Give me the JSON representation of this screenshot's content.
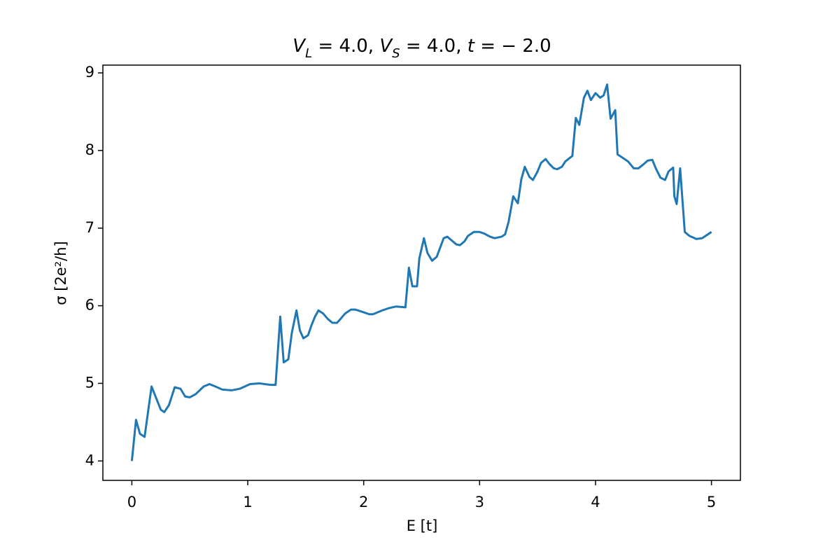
{
  "chart_data": {
    "type": "line",
    "title_parts": [
      {
        "text": "V",
        "italic": true
      },
      {
        "text": "L",
        "italic": true,
        "sub": true
      },
      {
        "text": " = 4.0, "
      },
      {
        "text": "V",
        "italic": true
      },
      {
        "text": "S",
        "italic": true,
        "sub": true
      },
      {
        "text": " = 4.0, "
      },
      {
        "text": "t",
        "italic": true
      },
      {
        "text": " =  − 2.0"
      }
    ],
    "x_label": "E [t]",
    "y_label": "σ [2e²/h]",
    "xlim": [
      -0.25,
      5.25
    ],
    "ylim": [
      3.75,
      9.1
    ],
    "xticks": [
      0,
      1,
      2,
      3,
      4,
      5
    ],
    "yticks": [
      4,
      5,
      6,
      7,
      8,
      9
    ],
    "grid": false,
    "series": [
      {
        "color": "#1f77b4",
        "x": [
          0,
          0.036,
          0.07,
          0.11,
          0.17,
          0.25,
          0.28,
          0.32,
          0.37,
          0.42,
          0.46,
          0.5,
          0.55,
          0.62,
          0.67,
          0.72,
          0.78,
          0.86,
          0.93,
          1.02,
          1.1,
          1.2,
          1.24,
          1.28,
          1.31,
          1.35,
          1.38,
          1.42,
          1.45,
          1.48,
          1.52,
          1.55,
          1.58,
          1.61,
          1.65,
          1.69,
          1.73,
          1.77,
          1.8,
          1.84,
          1.89,
          1.93,
          1.99,
          2.05,
          2.08,
          2.16,
          2.22,
          2.28,
          2.36,
          2.39,
          2.42,
          2.46,
          2.48,
          2.52,
          2.55,
          2.59,
          2.63,
          2.66,
          2.69,
          2.72,
          2.76,
          2.8,
          2.83,
          2.87,
          2.9,
          2.95,
          3.0,
          3.04,
          3.09,
          3.13,
          3.19,
          3.22,
          3.25,
          3.29,
          3.33,
          3.36,
          3.39,
          3.43,
          3.46,
          3.5,
          3.53,
          3.57,
          3.6,
          3.64,
          3.67,
          3.71,
          3.74,
          3.8,
          3.83,
          3.86,
          3.9,
          3.93,
          3.96,
          4.0,
          4.04,
          4.07,
          4.1,
          4.13,
          4.17,
          4.19,
          4.23,
          4.28,
          4.33,
          4.37,
          4.42,
          4.45,
          4.49,
          4.52,
          4.56,
          4.6,
          4.63,
          4.67,
          4.68,
          4.7,
          4.73,
          4.77,
          4.81,
          4.87,
          4.92,
          5.0
        ],
        "values": [
          4.0,
          4.53,
          4.35,
          4.31,
          4.96,
          4.66,
          4.63,
          4.72,
          4.95,
          4.93,
          4.83,
          4.82,
          4.86,
          4.96,
          4.99,
          4.96,
          4.92,
          4.91,
          4.93,
          4.99,
          5.0,
          4.98,
          4.98,
          5.86,
          5.27,
          5.31,
          5.65,
          5.94,
          5.68,
          5.58,
          5.62,
          5.75,
          5.86,
          5.94,
          5.9,
          5.83,
          5.78,
          5.78,
          5.83,
          5.9,
          5.95,
          5.95,
          5.92,
          5.89,
          5.89,
          5.94,
          5.97,
          5.99,
          5.98,
          6.49,
          6.25,
          6.25,
          6.61,
          6.87,
          6.68,
          6.58,
          6.63,
          6.75,
          6.87,
          6.89,
          6.84,
          6.79,
          6.78,
          6.83,
          6.9,
          6.95,
          6.95,
          6.93,
          6.89,
          6.87,
          6.89,
          6.92,
          7.08,
          7.41,
          7.32,
          7.63,
          7.79,
          7.66,
          7.62,
          7.73,
          7.84,
          7.89,
          7.83,
          7.77,
          7.76,
          7.79,
          7.86,
          7.93,
          8.42,
          8.33,
          8.68,
          8.77,
          8.65,
          8.74,
          8.68,
          8.71,
          8.85,
          8.41,
          8.52,
          7.95,
          7.91,
          7.86,
          7.77,
          7.77,
          7.83,
          7.87,
          7.88,
          7.77,
          7.65,
          7.62,
          7.73,
          7.78,
          7.41,
          7.31,
          7.77,
          6.95,
          6.9,
          6.86,
          6.87,
          6.95
        ]
      }
    ]
  }
}
